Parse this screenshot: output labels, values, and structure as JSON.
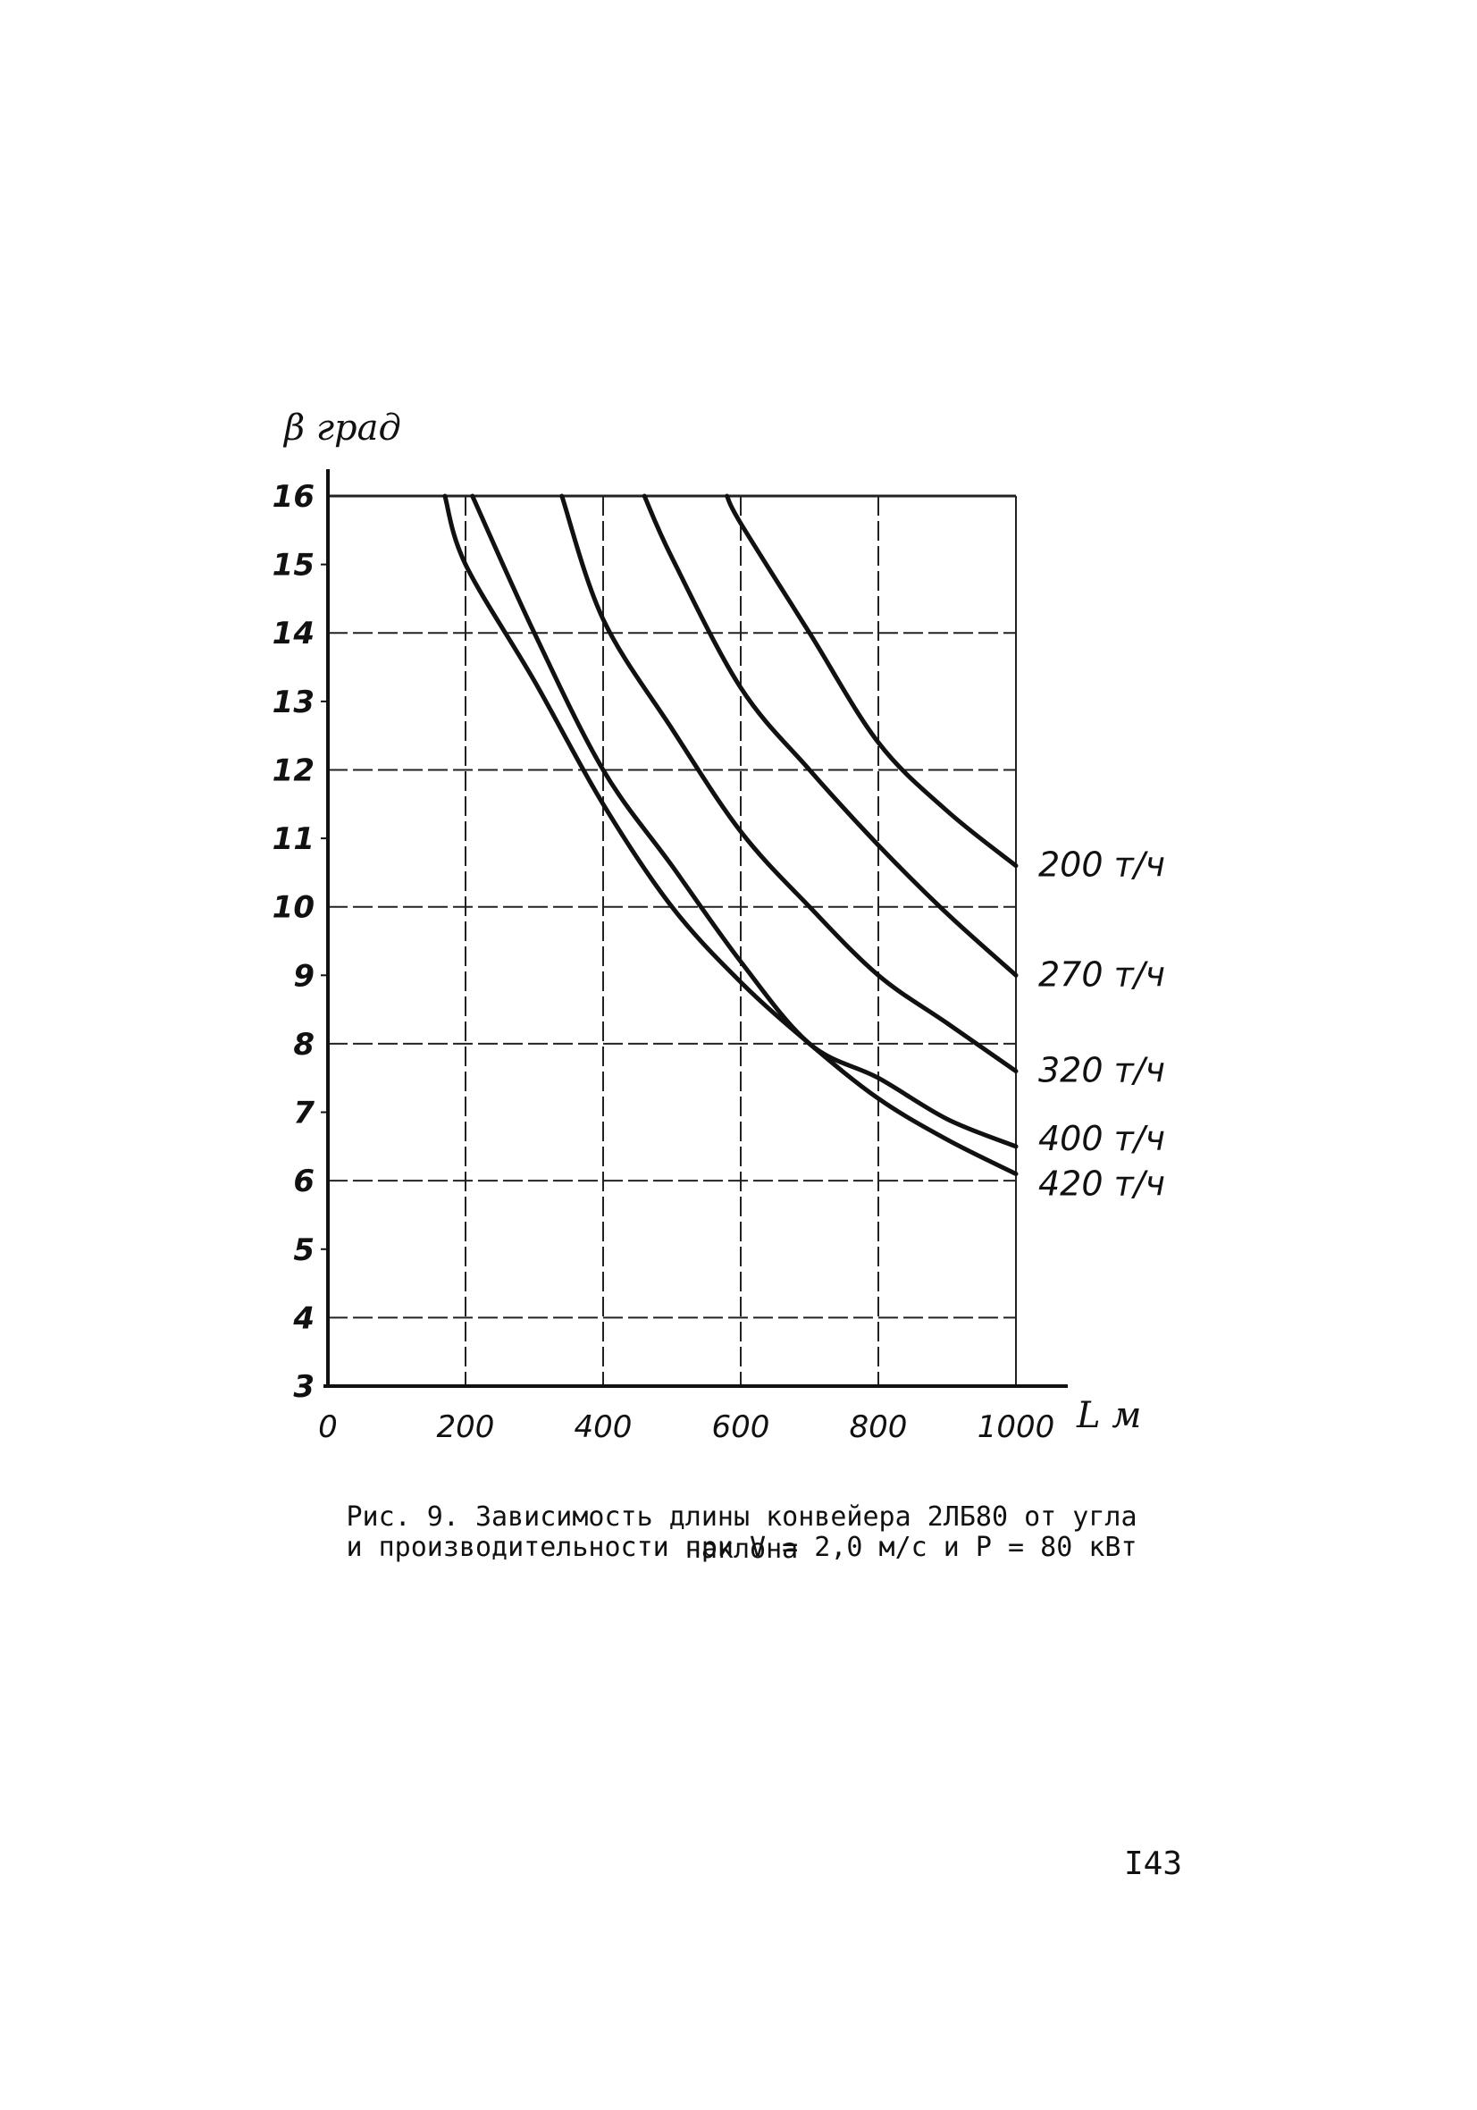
{
  "chart_data": {
    "type": "line",
    "ylabel": "β град",
    "xlabel": "L м",
    "xlim": [
      0,
      1000
    ],
    "ylim": [
      3,
      16
    ],
    "grid": true,
    "x_ticks": [
      {
        "value": 0,
        "label": "0"
      },
      {
        "value": 200,
        "label": "200"
      },
      {
        "value": 400,
        "label": "400"
      },
      {
        "value": 600,
        "label": "600"
      },
      {
        "value": 800,
        "label": "800"
      },
      {
        "value": 1000,
        "label": "1000"
      }
    ],
    "y_ticks": [
      {
        "value": 3,
        "label": "3"
      },
      {
        "value": 4,
        "label": "4"
      },
      {
        "value": 5,
        "label": "5"
      },
      {
        "value": 6,
        "label": "6"
      },
      {
        "value": 7,
        "label": "7"
      },
      {
        "value": 8,
        "label": "8"
      },
      {
        "value": 9,
        "label": "9"
      },
      {
        "value": 10,
        "label": "10"
      },
      {
        "value": 11,
        "label": "11"
      },
      {
        "value": 12,
        "label": "12"
      },
      {
        "value": 13,
        "label": "13"
      },
      {
        "value": 14,
        "label": "14"
      },
      {
        "value": 15,
        "label": "15"
      },
      {
        "value": 16,
        "label": "16"
      }
    ],
    "series": [
      {
        "name": "200 т/ч",
        "points": [
          [
            580,
            16
          ],
          [
            600,
            15.6
          ],
          [
            700,
            14
          ],
          [
            800,
            12.4
          ],
          [
            900,
            11.4
          ],
          [
            1000,
            10.6
          ]
        ]
      },
      {
        "name": "270 т/ч",
        "points": [
          [
            460,
            16
          ],
          [
            500,
            15.1
          ],
          [
            600,
            13.2
          ],
          [
            700,
            12
          ],
          [
            800,
            10.9
          ],
          [
            900,
            9.9
          ],
          [
            1000,
            9.0
          ]
        ]
      },
      {
        "name": "320 т/ч",
        "points": [
          [
            340,
            16
          ],
          [
            400,
            14.2
          ],
          [
            500,
            12.6
          ],
          [
            600,
            11.1
          ],
          [
            700,
            10.0
          ],
          [
            800,
            9.0
          ],
          [
            900,
            8.3
          ],
          [
            1000,
            7.6
          ]
        ]
      },
      {
        "name": "400 т/ч",
        "points": [
          [
            210,
            16
          ],
          [
            300,
            14.0
          ],
          [
            400,
            12.0
          ],
          [
            500,
            10.6
          ],
          [
            600,
            9.2
          ],
          [
            700,
            8.0
          ],
          [
            800,
            7.5
          ],
          [
            900,
            6.9
          ],
          [
            1000,
            6.5
          ]
        ]
      },
      {
        "name": "420 т/ч",
        "points": [
          [
            170,
            16
          ],
          [
            200,
            15.0
          ],
          [
            300,
            13.3
          ],
          [
            400,
            11.5
          ],
          [
            500,
            10.0
          ],
          [
            600,
            8.9
          ],
          [
            700,
            8.0
          ],
          [
            800,
            7.2
          ],
          [
            900,
            6.6
          ],
          [
            1000,
            6.1
          ]
        ]
      }
    ]
  },
  "caption": {
    "line1": "Рис. 9. Зависимость длины конвейера 2ЛБ80 от угла наклона",
    "line2": "и производительности при V = 2,0 м/с и P = 80 кВт"
  },
  "page_number": "I43"
}
